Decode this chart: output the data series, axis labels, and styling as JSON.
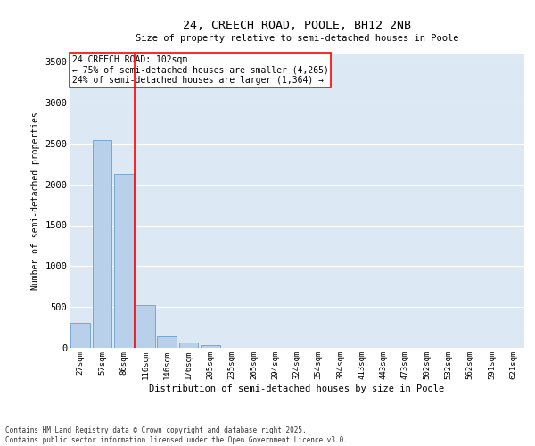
{
  "title": "24, CREECH ROAD, POOLE, BH12 2NB",
  "subtitle": "Size of property relative to semi-detached houses in Poole",
  "xlabel": "Distribution of semi-detached houses by size in Poole",
  "ylabel": "Number of semi-detached properties",
  "bar_labels": [
    "27sqm",
    "57sqm",
    "86sqm",
    "116sqm",
    "146sqm",
    "176sqm",
    "205sqm",
    "235sqm",
    "265sqm",
    "294sqm",
    "324sqm",
    "354sqm",
    "384sqm",
    "413sqm",
    "443sqm",
    "473sqm",
    "502sqm",
    "532sqm",
    "562sqm",
    "591sqm",
    "621sqm"
  ],
  "bar_values": [
    305,
    2540,
    2125,
    525,
    145,
    70,
    30,
    5,
    2,
    1,
    1,
    1,
    1,
    0,
    0,
    0,
    0,
    0,
    0,
    0,
    0
  ],
  "bar_color": "#b8d0ea",
  "bar_edge_color": "#6a9fd0",
  "vline_color": "red",
  "vline_pos": 2.5,
  "annotation_title": "24 CREECH ROAD: 102sqm",
  "annotation_line1": "← 75% of semi-detached houses are smaller (4,265)",
  "annotation_line2": "24% of semi-detached houses are larger (1,364) →",
  "ylim": [
    0,
    3600
  ],
  "yticks": [
    0,
    500,
    1000,
    1500,
    2000,
    2500,
    3000,
    3500
  ],
  "background_color": "#dde8f5",
  "grid_color": "white",
  "footer_line1": "Contains HM Land Registry data © Crown copyright and database right 2025.",
  "footer_line2": "Contains public sector information licensed under the Open Government Licence v3.0."
}
